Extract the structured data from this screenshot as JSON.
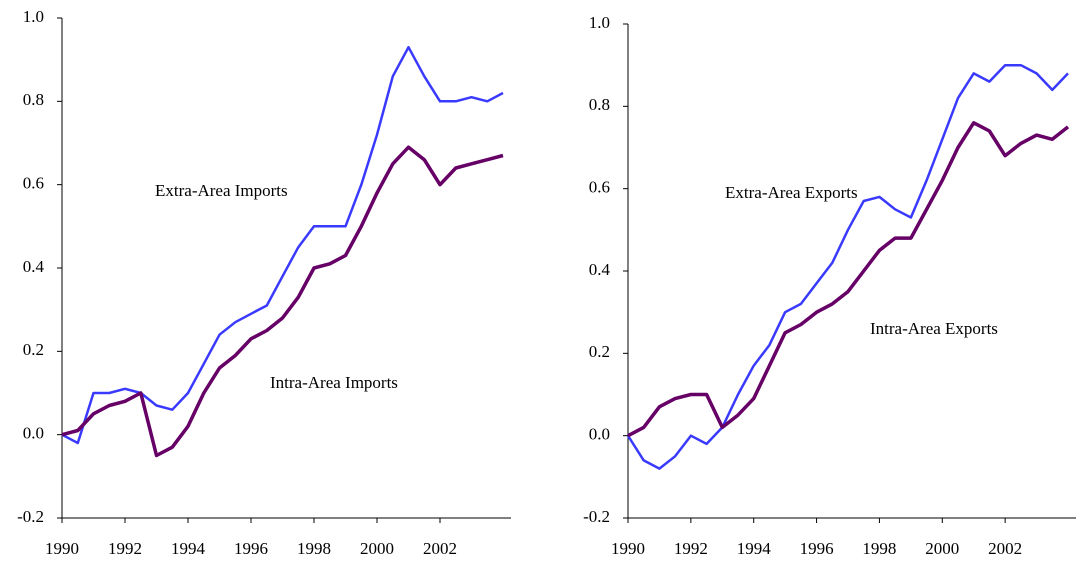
{
  "chart_data": [
    {
      "type": "line",
      "x": [
        1990,
        1990.5,
        1991,
        1991.5,
        1992,
        1992.5,
        1993,
        1993.5,
        1994,
        1994.5,
        1995,
        1995.5,
        1996,
        1996.5,
        1997,
        1997.5,
        1998,
        1998.5,
        1999,
        1999.5,
        2000,
        2000.5,
        2001,
        2001.5,
        2002,
        2002.5,
        2003,
        2003.5,
        2004
      ],
      "series": [
        {
          "name": "Extra-Area Imports",
          "color": "#3a3aff",
          "values": [
            0,
            -0.02,
            0.1,
            0.1,
            0.11,
            0.1,
            0.07,
            0.06,
            0.1,
            0.17,
            0.24,
            0.27,
            0.29,
            0.31,
            0.38,
            0.45,
            0.5,
            0.5,
            0.5,
            0.6,
            0.72,
            0.86,
            0.93,
            0.86,
            0.8,
            0.8,
            0.81,
            0.8,
            0.82
          ]
        },
        {
          "name": "Intra-Area Imports",
          "color": "#660066",
          "values": [
            0,
            0.01,
            0.05,
            0.07,
            0.08,
            0.1,
            -0.05,
            -0.03,
            0.02,
            0.1,
            0.16,
            0.19,
            0.23,
            0.25,
            0.28,
            0.33,
            0.4,
            0.41,
            0.43,
            0.5,
            0.58,
            0.65,
            0.69,
            0.66,
            0.6,
            0.64,
            0.65,
            0.66,
            0.67
          ]
        }
      ],
      "xlim": [
        1990,
        2004
      ],
      "xticks": [
        1990,
        1992,
        1994,
        1996,
        1998,
        2000,
        2002
      ],
      "ylim": [
        -0.2,
        1.0
      ],
      "yticks": [
        -0.2,
        {
          "value": 0,
          "label": "0.0"
        },
        0.2,
        0.4,
        0.6,
        0.8,
        {
          "value": 1,
          "label": "1.0"
        }
      ],
      "grid": false
    },
    {
      "type": "line",
      "x": [
        1990,
        1990.5,
        1991,
        1991.5,
        1992,
        1992.5,
        1993,
        1993.5,
        1994,
        1994.5,
        1995,
        1995.5,
        1996,
        1996.5,
        1997,
        1997.5,
        1998,
        1998.5,
        1999,
        1999.5,
        2000,
        2000.5,
        2001,
        2001.5,
        2002,
        2002.5,
        2003,
        2003.5,
        2004
      ],
      "series": [
        {
          "name": "Extra-Area Exports",
          "color": "#3a3aff",
          "values": [
            0,
            -0.06,
            -0.08,
            -0.05,
            0,
            -0.02,
            0.02,
            0.1,
            0.17,
            0.22,
            0.3,
            0.32,
            0.37,
            0.42,
            0.5,
            0.57,
            0.58,
            0.55,
            0.53,
            0.62,
            0.72,
            0.82,
            0.88,
            0.86,
            0.9,
            0.9,
            0.88,
            0.84,
            0.88
          ]
        },
        {
          "name": "Intra-Area Exports",
          "color": "#660066",
          "values": [
            0,
            0.02,
            0.07,
            0.09,
            0.1,
            0.1,
            0.02,
            0.05,
            0.09,
            0.17,
            0.25,
            0.27,
            0.3,
            0.32,
            0.35,
            0.4,
            0.45,
            0.48,
            0.48,
            0.55,
            0.62,
            0.7,
            0.76,
            0.74,
            0.68,
            0.71,
            0.73,
            0.72,
            0.75
          ]
        }
      ],
      "xlim": [
        1990,
        2004
      ],
      "xticks": [
        1990,
        1992,
        1994,
        1996,
        1998,
        2000,
        2002
      ],
      "ylim": [
        -0.2,
        1.0
      ],
      "yticks": [
        -0.2,
        {
          "value": 0,
          "label": "0.0"
        },
        0.2,
        0.4,
        0.6,
        0.8,
        {
          "value": 1,
          "label": "1.0"
        }
      ],
      "grid": false
    }
  ]
}
